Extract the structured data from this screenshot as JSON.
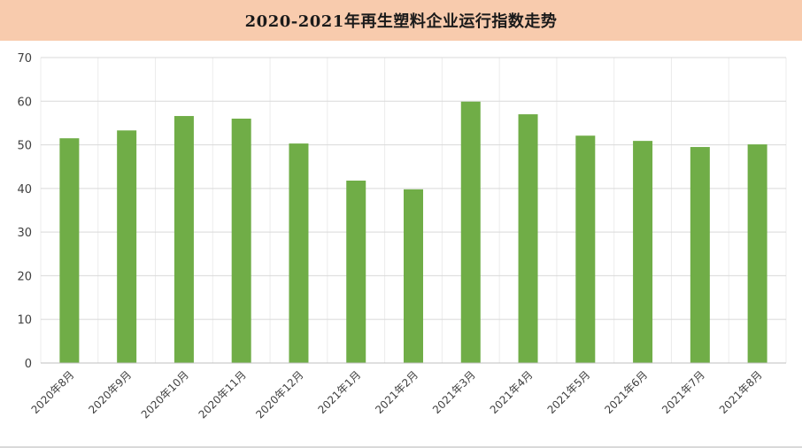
{
  "title": "2020-2021年再生塑料企业运行指数走势",
  "colors": {
    "title_bg": "#f8cbad",
    "bar": "#70ad47",
    "grid": "#d9d9d9",
    "axis_text": "#404040"
  },
  "chart_data": {
    "type": "bar",
    "title": "2020-2021年再生塑料企业运行指数走势",
    "xlabel": "",
    "ylabel": "",
    "categories": [
      "2020年8月",
      "2020年9月",
      "2020年10月",
      "2020年11月",
      "2020年12月",
      "2021年1月",
      "2021年2月",
      "2021年3月",
      "2021年4月",
      "2021年5月",
      "2021年6月",
      "2021年7月",
      "2021年8月"
    ],
    "values": [
      51.5,
      53.3,
      56.6,
      56.0,
      50.3,
      41.8,
      39.8,
      59.9,
      57.0,
      52.1,
      50.9,
      49.5,
      50.1
    ],
    "ylim": [
      0,
      70
    ],
    "yticks": [
      0,
      10,
      20,
      30,
      40,
      50,
      60,
      70
    ],
    "grid": true,
    "legend": "none"
  }
}
